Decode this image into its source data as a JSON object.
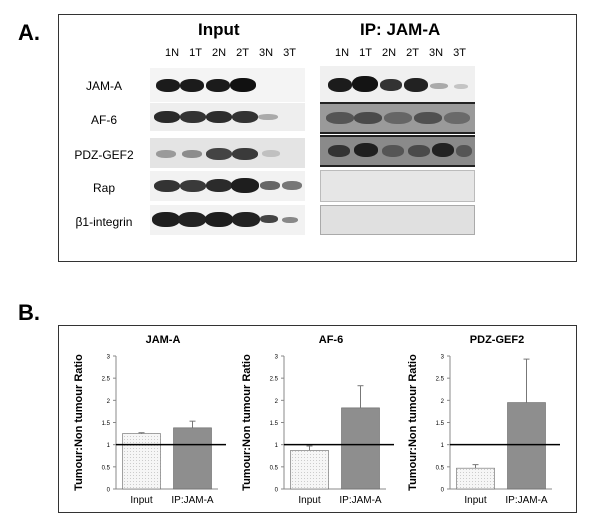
{
  "panel_a": {
    "letter": "A.",
    "input_header": "Input",
    "ip_header": "IP: JAM-A",
    "lanes": [
      "1N",
      "1T",
      "2N",
      "2T",
      "3N",
      "3T"
    ],
    "row_labels": [
      "JAM-A",
      "AF-6",
      "PDZ-GEF2",
      "Rap",
      "β1-integrin"
    ]
  },
  "panel_b": {
    "letter": "B.",
    "y_axis_label": "Tumour:Non tumour Ratio"
  },
  "chart_data": [
    {
      "type": "bar",
      "title": "JAM-A",
      "categories": [
        "Input",
        "IP:JAM-A"
      ],
      "values": [
        1.25,
        1.38
      ],
      "errors": [
        0.02,
        0.15
      ],
      "ylabel": "Tumour:Non tumour Ratio",
      "ylim": [
        0,
        3
      ],
      "yticks": [
        "0",
        "0.5",
        "1",
        "1.5",
        "2",
        "2.5",
        "3"
      ],
      "reference_line": 1
    },
    {
      "type": "bar",
      "title": "AF-6",
      "categories": [
        "Input",
        "IP:JAM-A"
      ],
      "values": [
        0.87,
        1.83
      ],
      "errors": [
        0.1,
        0.5
      ],
      "ylabel": "Tumour:Non tumour Ratio",
      "ylim": [
        0,
        3
      ],
      "yticks": [
        "0",
        "0.5",
        "1",
        "1.5",
        "2",
        "2.5",
        "3"
      ],
      "reference_line": 1
    },
    {
      "type": "bar",
      "title": "PDZ-GEF2",
      "categories": [
        "Input",
        "IP:JAM-A"
      ],
      "values": [
        0.47,
        1.95
      ],
      "errors": [
        0.08,
        0.98
      ],
      "ylabel": "Tumour:Non tumour Ratio",
      "ylim": [
        0,
        3
      ],
      "yticks": [
        "0",
        "0.5",
        "1",
        "1.5",
        "2",
        "2.5",
        "3"
      ],
      "reference_line": 1
    }
  ]
}
